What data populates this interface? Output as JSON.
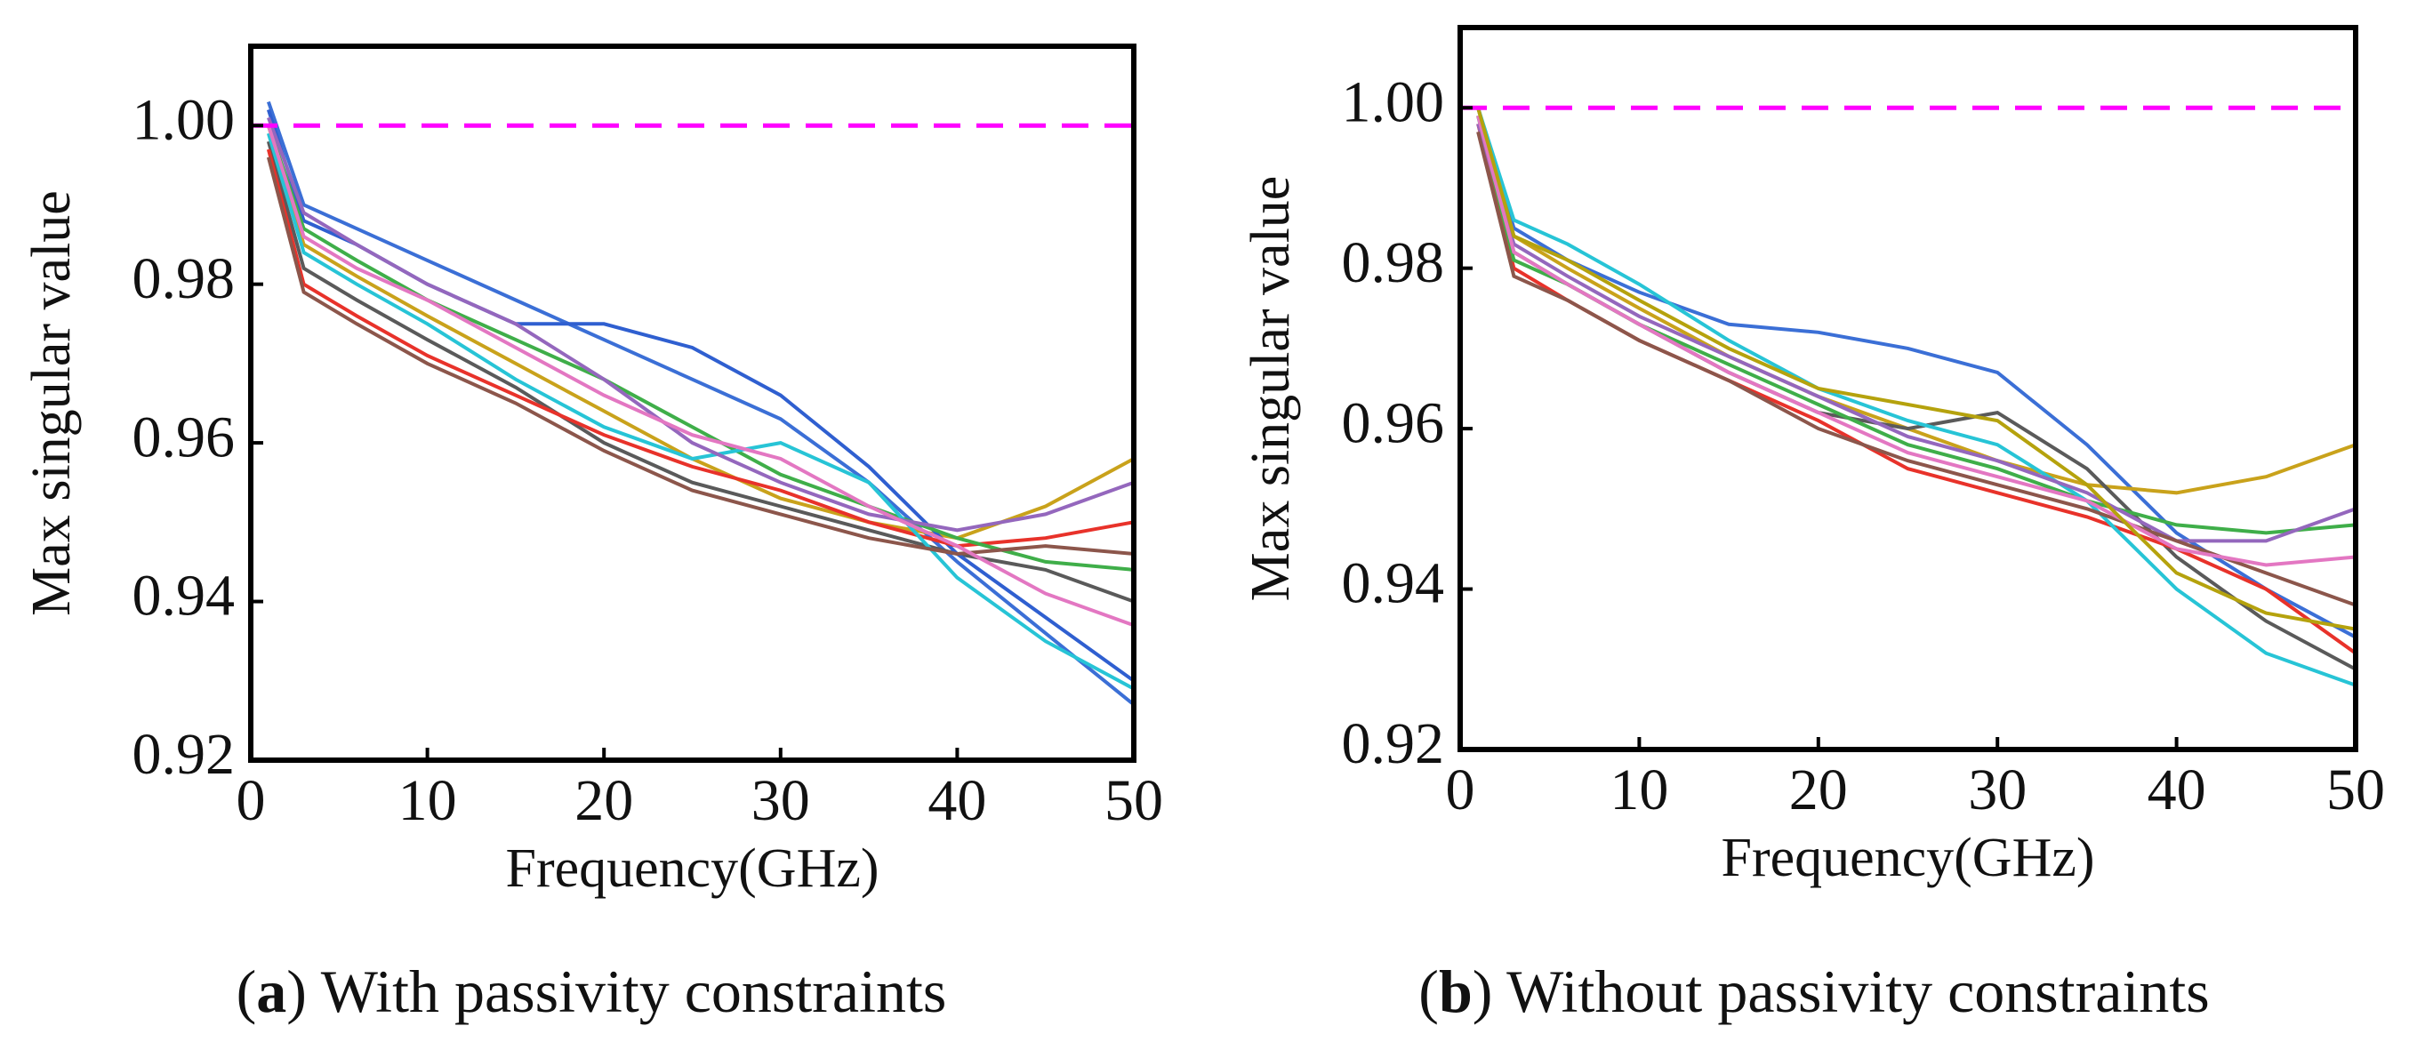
{
  "chart_data": [
    {
      "type": "line",
      "xlabel": "Frequency(GHz)",
      "ylabel": "Max singular value",
      "caption": [
        "(",
        "a",
        ") With passivity constraints"
      ],
      "x": [
        1,
        3,
        6,
        10,
        15,
        20,
        25,
        30,
        35,
        40,
        45,
        50
      ],
      "xlim": [
        0,
        50
      ],
      "xticks": [
        0,
        10,
        20,
        30,
        40,
        50
      ],
      "ylim": [
        0.92,
        1.01
      ],
      "yticks": [
        0.92,
        0.94,
        0.96,
        0.98,
        {
          "value": 1,
          "label": "1.00"
        }
      ],
      "reference_line": {
        "value": 1,
        "color": "#ff00ff"
      },
      "series": [
        {
          "color": "#3b6fd6",
          "values": [
            1.003,
            0.99,
            0.987,
            0.983,
            0.978,
            0.973,
            0.968,
            0.963,
            0.955,
            0.945,
            0.936,
            0.927
          ]
        },
        {
          "color": "#c9a21b",
          "values": [
            1.0,
            0.985,
            0.981,
            0.976,
            0.97,
            0.964,
            0.958,
            0.953,
            0.95,
            0.948,
            0.952,
            0.958
          ]
        },
        {
          "color": "#5a5a5a",
          "values": [
            0.998,
            0.982,
            0.978,
            0.973,
            0.967,
            0.96,
            0.955,
            0.952,
            0.949,
            0.946,
            0.944,
            0.94
          ]
        },
        {
          "color": "#2f5fd0",
          "values": [
            1.002,
            0.988,
            0.985,
            0.98,
            0.975,
            0.975,
            0.972,
            0.966,
            0.957,
            0.946,
            0.938,
            0.93
          ]
        },
        {
          "color": "#e8322a",
          "values": [
            0.997,
            0.98,
            0.976,
            0.971,
            0.966,
            0.961,
            0.957,
            0.954,
            0.95,
            0.947,
            0.948,
            0.95
          ]
        },
        {
          "color": "#3fae49",
          "values": [
            1.0,
            0.987,
            0.983,
            0.978,
            0.973,
            0.968,
            0.962,
            0.956,
            0.952,
            0.948,
            0.945,
            0.944
          ]
        },
        {
          "color": "#27c4d6",
          "values": [
            0.999,
            0.984,
            0.98,
            0.975,
            0.968,
            0.962,
            0.958,
            0.96,
            0.955,
            0.943,
            0.935,
            0.929
          ]
        },
        {
          "color": "#9467bd",
          "values": [
            1.001,
            0.989,
            0.985,
            0.98,
            0.975,
            0.968,
            0.96,
            0.955,
            0.951,
            0.949,
            0.951,
            0.955
          ]
        },
        {
          "color": "#8c564b",
          "values": [
            0.996,
            0.979,
            0.975,
            0.97,
            0.965,
            0.959,
            0.954,
            0.951,
            0.948,
            0.946,
            0.947,
            0.946
          ]
        },
        {
          "color": "#e377c2",
          "values": [
            1.0,
            0.986,
            0.982,
            0.978,
            0.972,
            0.966,
            0.961,
            0.958,
            0.952,
            0.947,
            0.941,
            0.937
          ]
        }
      ]
    },
    {
      "type": "line",
      "xlabel": "Frequency(GHz)",
      "ylabel": "Max singular value",
      "caption": [
        "(",
        "b",
        ") Without passivity constraints"
      ],
      "x": [
        1,
        3,
        6,
        10,
        15,
        20,
        25,
        30,
        35,
        40,
        45,
        50
      ],
      "xlim": [
        0,
        50
      ],
      "xticks": [
        0,
        10,
        20,
        30,
        40,
        50
      ],
      "ylim": [
        0.92,
        1.01
      ],
      "yticks": [
        0.92,
        0.94,
        0.96,
        0.98,
        {
          "value": 1,
          "label": "1.00"
        }
      ],
      "reference_line": {
        "value": 1,
        "color": "#ff00ff"
      },
      "series": [
        {
          "color": "#3b6fd6",
          "values": [
            1.0,
            0.985,
            0.981,
            0.977,
            0.973,
            0.972,
            0.97,
            0.967,
            0.958,
            0.947,
            0.94,
            0.934
          ]
        },
        {
          "color": "#c9a21b",
          "values": [
            1.0,
            0.984,
            0.98,
            0.975,
            0.969,
            0.964,
            0.96,
            0.956,
            0.953,
            0.952,
            0.954,
            0.958
          ]
        },
        {
          "color": "#5a5a5a",
          "values": [
            0.999,
            0.982,
            0.978,
            0.973,
            0.967,
            0.962,
            0.96,
            0.962,
            0.955,
            0.944,
            0.936,
            0.93
          ]
        },
        {
          "color": "#e8322a",
          "values": [
            0.998,
            0.98,
            0.976,
            0.971,
            0.966,
            0.961,
            0.955,
            0.952,
            0.949,
            0.945,
            0.94,
            0.932
          ]
        },
        {
          "color": "#3fae49",
          "values": [
            0.999,
            0.981,
            0.978,
            0.973,
            0.968,
            0.963,
            0.958,
            0.955,
            0.951,
            0.948,
            0.947,
            0.948
          ]
        },
        {
          "color": "#27c4d6",
          "values": [
            1.0,
            0.986,
            0.983,
            0.978,
            0.971,
            0.965,
            0.961,
            0.958,
            0.951,
            0.94,
            0.932,
            0.928
          ]
        },
        {
          "color": "#9467bd",
          "values": [
            0.998,
            0.983,
            0.979,
            0.974,
            0.969,
            0.964,
            0.959,
            0.956,
            0.952,
            0.946,
            0.946,
            0.95
          ]
        },
        {
          "color": "#8c564b",
          "values": [
            0.997,
            0.979,
            0.976,
            0.971,
            0.966,
            0.96,
            0.956,
            0.953,
            0.95,
            0.946,
            0.942,
            0.938
          ]
        },
        {
          "color": "#e377c2",
          "values": [
            0.999,
            0.982,
            0.978,
            0.973,
            0.967,
            0.962,
            0.957,
            0.954,
            0.951,
            0.945,
            0.943,
            0.944
          ]
        },
        {
          "color": "#b5a20d",
          "values": [
            1.0,
            0.984,
            0.981,
            0.976,
            0.97,
            0.965,
            0.963,
            0.961,
            0.953,
            0.942,
            0.937,
            0.935
          ]
        }
      ]
    }
  ]
}
